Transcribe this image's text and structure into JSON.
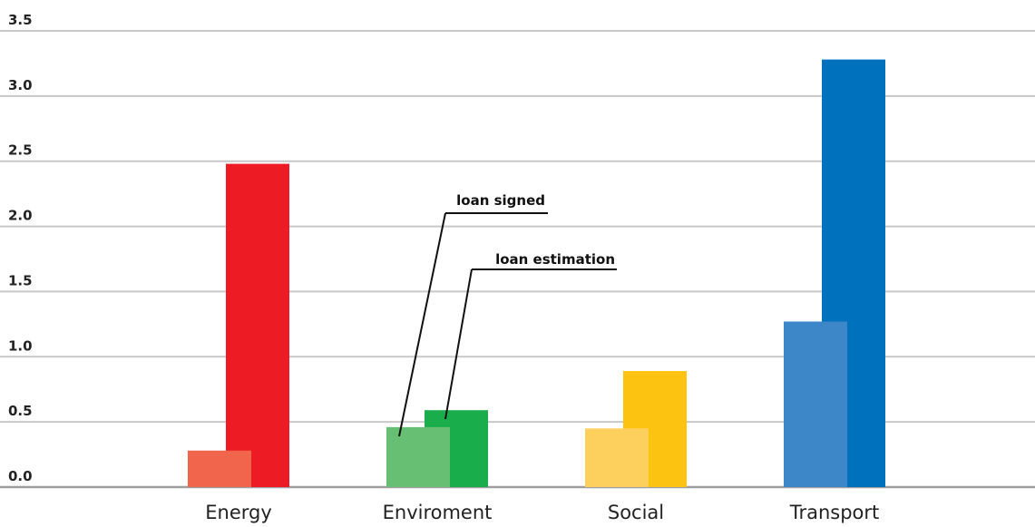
{
  "chart_data": {
    "type": "bar",
    "categories": [
      "Energy",
      "Enviroment",
      "Social",
      "Transport"
    ],
    "series": [
      {
        "values": [
          0.28,
          0.46,
          0.45,
          1.27
        ]
      },
      {
        "values": [
          2.48,
          0.59,
          0.89,
          3.28
        ]
      }
    ],
    "colors": {
      "Energy": [
        "#f0654b",
        "#ed1c24"
      ],
      "Enviroment": [
        "#66bf73",
        "#1aad4b"
      ],
      "Social": [
        "#fdd05d",
        "#fdc311"
      ],
      "Transport": [
        "#3d87c9",
        "#0071bc"
      ]
    },
    "yticks": [
      "0.0",
      "0.5",
      "1.0",
      "1.5",
      "2.0",
      "2.5",
      "3.0",
      "3.5"
    ],
    "ylim": [
      0,
      3.5
    ],
    "grid": true,
    "annotations": [
      {
        "text": "loan signed"
      },
      {
        "text": "loan estimation"
      }
    ]
  }
}
